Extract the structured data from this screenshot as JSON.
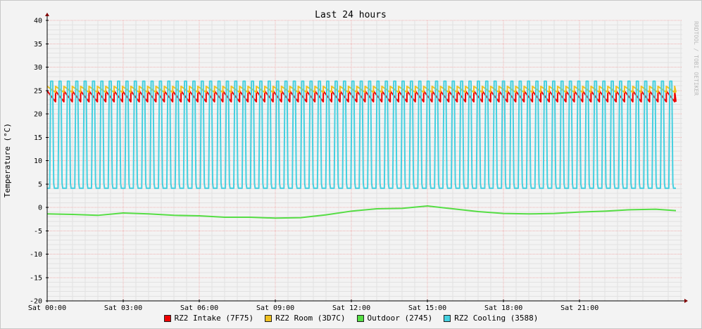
{
  "chart_data": {
    "type": "line",
    "title": "Last 24 hours",
    "ylabel": "Temperature (°C)",
    "watermark": "RRDTOOL / TOBI OETIKER",
    "ylim": [
      -20,
      40
    ],
    "yticks": [
      40,
      35,
      30,
      25,
      20,
      15,
      10,
      5,
      0,
      -5,
      -10,
      -15,
      -20
    ],
    "ytick_labels": [
      "40",
      "35",
      "30",
      "25",
      "20",
      "15",
      "10",
      "5",
      "0",
      "-5",
      "-10",
      "-15",
      "-20"
    ],
    "x_unit": "hours",
    "xlim": [
      0,
      25.05
    ],
    "xticks": [
      0,
      3,
      6,
      9,
      12,
      15,
      18,
      21
    ],
    "xtick_labels": [
      "Sat 00:00",
      "Sat 03:00",
      "Sat 06:00",
      "Sat 09:00",
      "Sat 12:00",
      "Sat 15:00",
      "Sat 18:00",
      "Sat 21:00"
    ],
    "grid": true,
    "legend_position": "bottom",
    "series": [
      {
        "name": "RZ2 Intake (7F75)",
        "color": "#ee0000",
        "pattern": "sawtooth",
        "period_hours": 0.33,
        "min": 22.6,
        "max": 24.9
      },
      {
        "name": "RZ2 Room (3D7C)",
        "color": "#f0c020",
        "pattern": "sawtooth",
        "period_hours": 0.33,
        "min": 24.6,
        "max": 25.9
      },
      {
        "name": "Outdoor (2745)",
        "color": "#55dd44",
        "pattern": "smooth",
        "x": [
          0,
          1,
          2,
          3,
          4,
          5,
          6,
          7,
          8,
          9,
          10,
          11,
          12,
          13,
          14,
          15,
          16,
          17,
          18,
          19,
          20,
          21,
          22,
          23,
          24,
          24.8
        ],
        "values": [
          -1.4,
          -1.5,
          -1.7,
          -1.2,
          -1.4,
          -1.7,
          -1.8,
          -2.1,
          -2.1,
          -2.3,
          -2.2,
          -1.6,
          -0.8,
          -0.3,
          -0.2,
          0.3,
          -0.3,
          -0.9,
          -1.3,
          -1.4,
          -1.3,
          -1.0,
          -0.8,
          -0.5,
          -0.4,
          -0.7
        ]
      },
      {
        "name": "RZ2 Cooling (3588)",
        "color": "#44d0e0",
        "pattern": "square-cycle",
        "period_hours": 0.33,
        "min": 4.1,
        "max": 27.0
      }
    ]
  }
}
